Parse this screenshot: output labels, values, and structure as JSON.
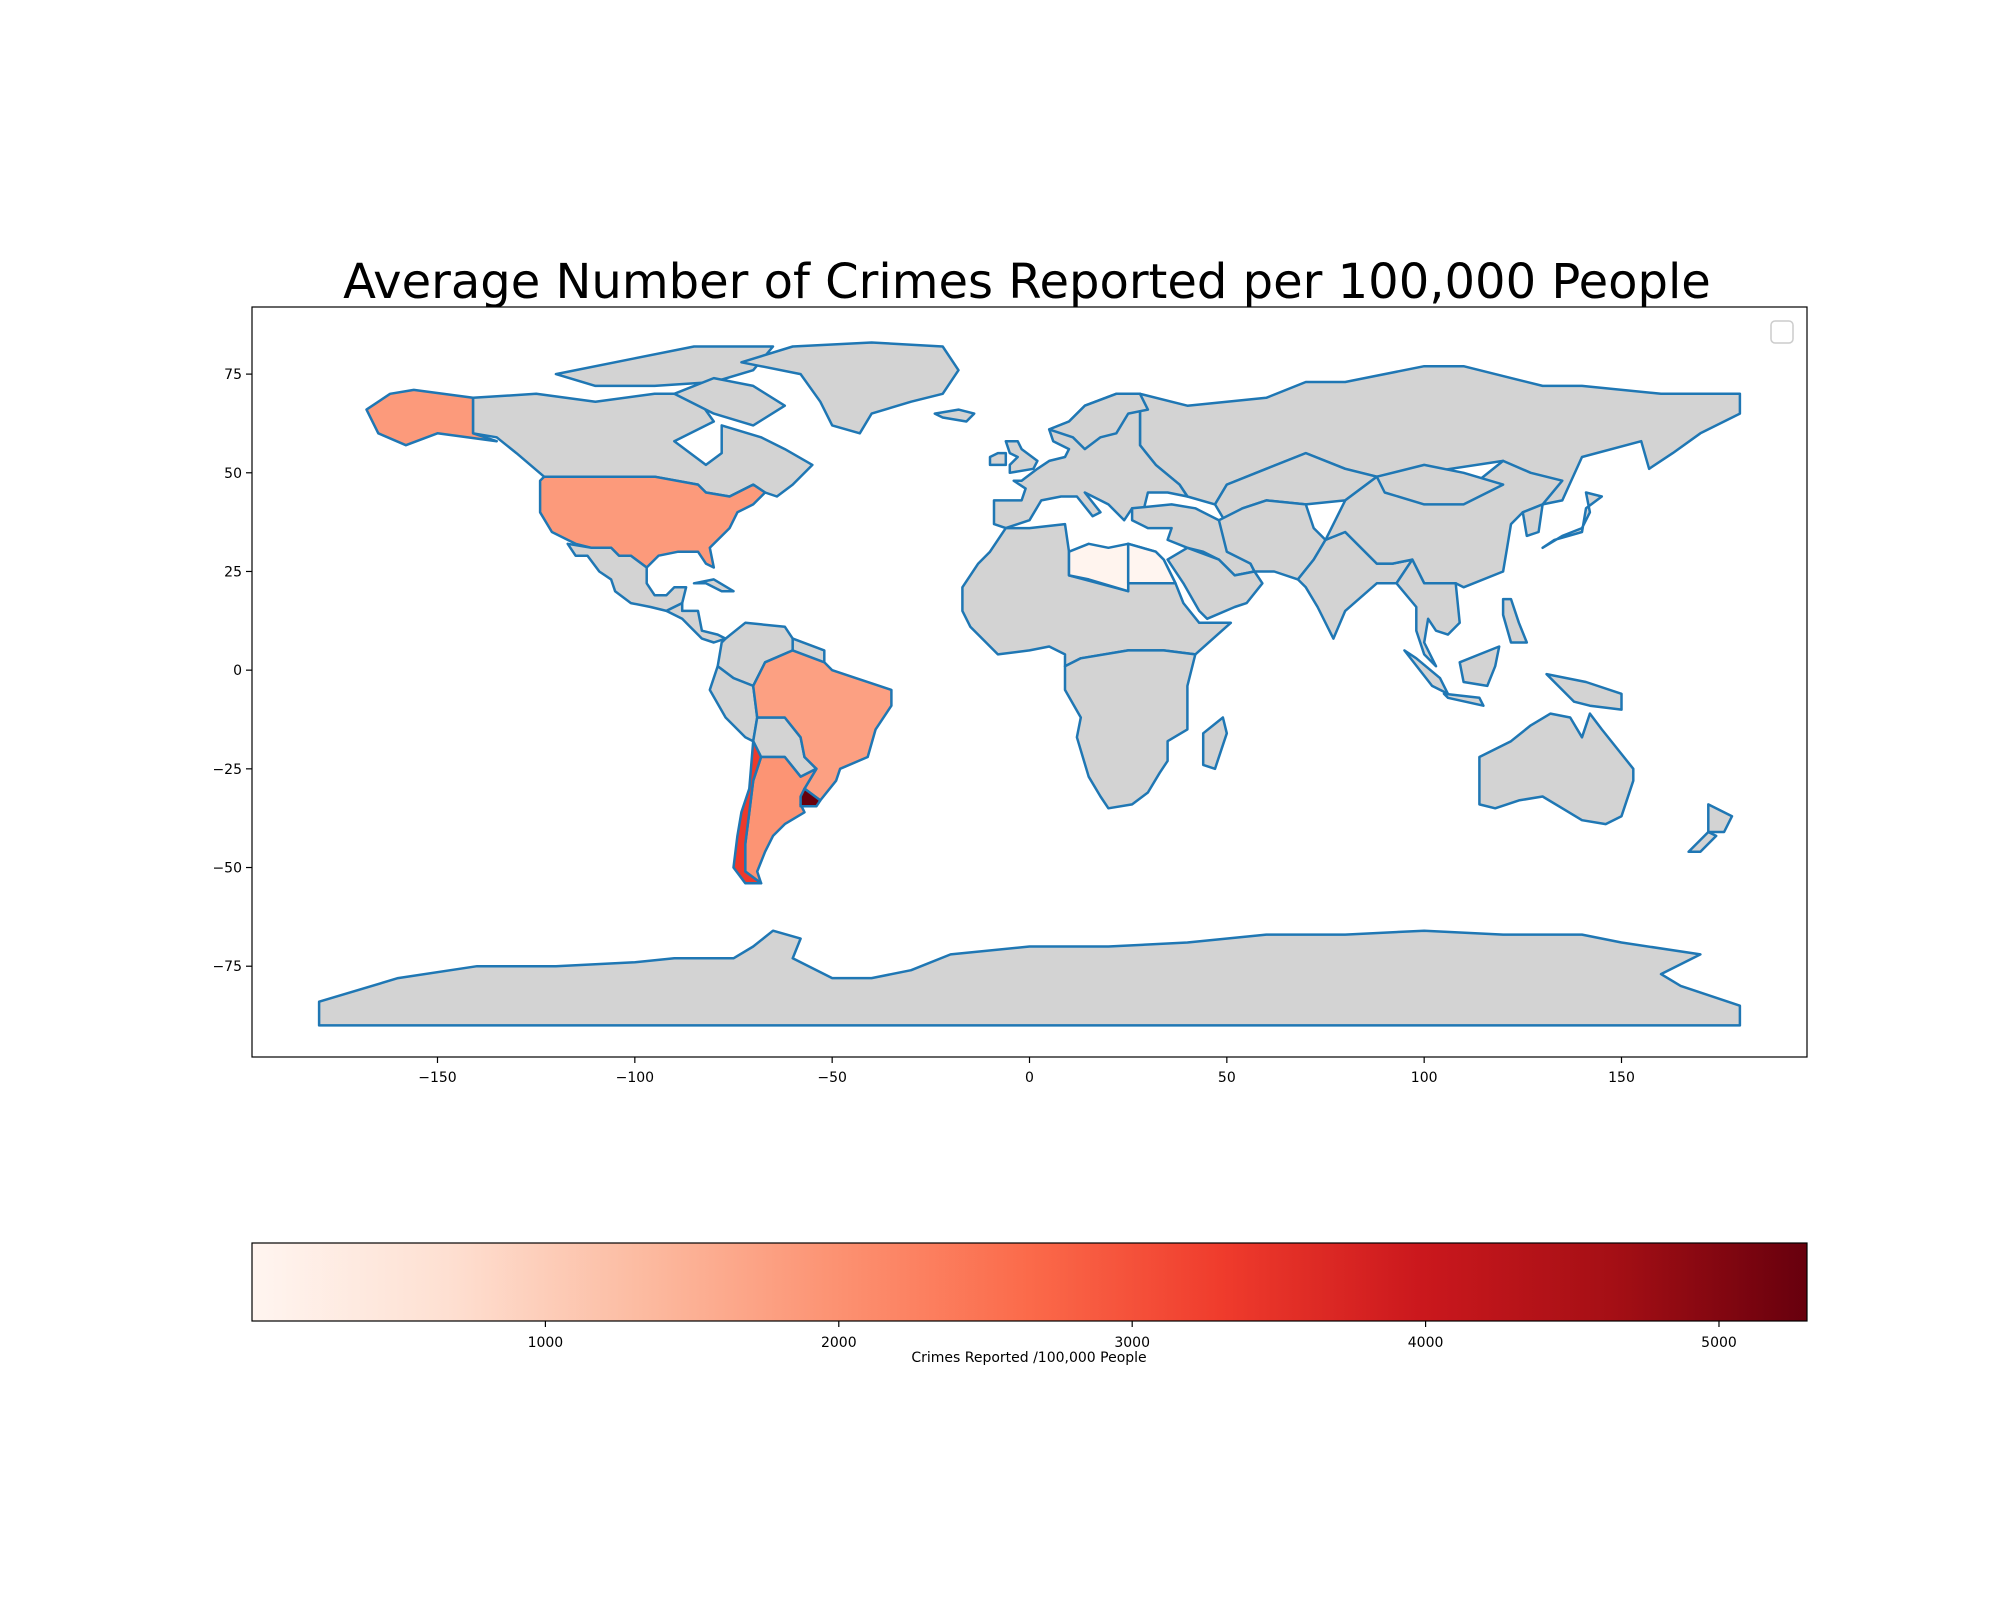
{
  "chart_data": {
    "type": "choropleth",
    "title": "Average Number of Crimes Reported per 100,000 People",
    "xlim": [
      -197,
      197
    ],
    "ylim": [
      -98,
      92
    ],
    "x_ticks": [
      -150,
      -100,
      -50,
      0,
      50,
      100,
      150
    ],
    "y_ticks": [
      75,
      50,
      25,
      0,
      -25,
      -50,
      -75
    ],
    "x_tick_labels": [
      "−150",
      "−100",
      "−50",
      "0",
      "50",
      "100",
      "150"
    ],
    "y_tick_labels": [
      "75",
      "50",
      "25",
      "0",
      "−25",
      "−50",
      "−75"
    ],
    "base_color": "#d3d3d3",
    "border_color": "#1f77b4",
    "colormap": "Reds",
    "colorbar": {
      "label": "Crimes Reported /100,000 People",
      "range": [
        0,
        5300
      ],
      "ticks": [
        1000,
        2000,
        3000,
        4000,
        5000
      ],
      "tick_labels": [
        "1000",
        "2000",
        "3000",
        "4000",
        "5000"
      ],
      "stops": [
        "#fff5f0",
        "#fee0d2",
        "#fcbba1",
        "#fc9272",
        "#fb6a4a",
        "#ef3b2c",
        "#cb181d",
        "#a50f15",
        "#67000d"
      ]
    },
    "highlighted_countries": [
      {
        "name": "United States",
        "color": "#fc9a7b"
      },
      {
        "name": "Brazil",
        "color": "#fca082"
      },
      {
        "name": "Argentina",
        "color": "#fc9474"
      },
      {
        "name": "Chile",
        "color": "#ee3a2c"
      },
      {
        "name": "Uruguay",
        "color": "#67000d"
      },
      {
        "name": "Libya",
        "color": "#fff4ee"
      },
      {
        "name": "Egypt",
        "color": "#fff5f0"
      }
    ]
  }
}
